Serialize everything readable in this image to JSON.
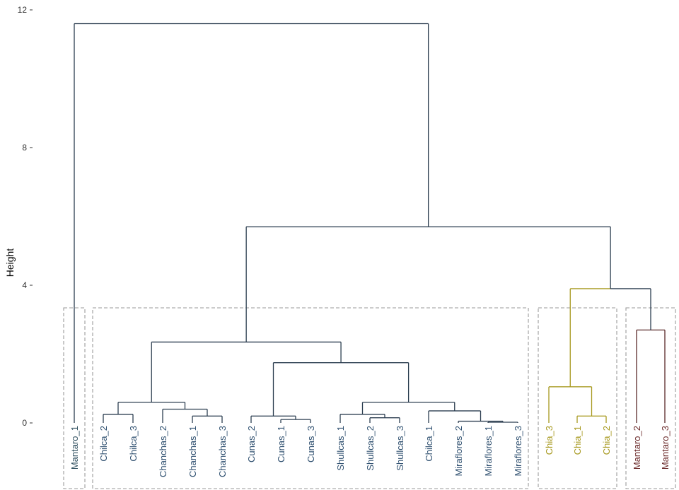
{
  "chart_data": {
    "type": "dendrogram",
    "title": "",
    "xlabel": "",
    "ylabel": "Height",
    "ylim": [
      -2.9,
      12.2
    ],
    "yticks": [
      0,
      4,
      8,
      12
    ],
    "ytick_labels": [
      "0",
      "4",
      "8",
      "12"
    ],
    "grid": false,
    "leaves": [
      {
        "label": "Mantaro_1",
        "cluster": 1
      },
      {
        "label": "Chilca_2",
        "cluster": 2
      },
      {
        "label": "Chilca_3",
        "cluster": 2
      },
      {
        "label": "Chanchas_2",
        "cluster": 2
      },
      {
        "label": "Chanchas_1",
        "cluster": 2
      },
      {
        "label": "Chanchas_3",
        "cluster": 2
      },
      {
        "label": "Cunas_2",
        "cluster": 2
      },
      {
        "label": "Cunas_1",
        "cluster": 2
      },
      {
        "label": "Cunas_3",
        "cluster": 2
      },
      {
        "label": "Shullcas_1",
        "cluster": 2
      },
      {
        "label": "Shullcas_2",
        "cluster": 2
      },
      {
        "label": "Shullcas_3",
        "cluster": 2
      },
      {
        "label": "Chilca_1",
        "cluster": 2
      },
      {
        "label": "Miraflores_2",
        "cluster": 2
      },
      {
        "label": "Miraflores_1",
        "cluster": 2
      },
      {
        "label": "Miraflores_3",
        "cluster": 2
      },
      {
        "label": "Chia_3",
        "cluster": 3
      },
      {
        "label": "Chia_1",
        "cluster": 3
      },
      {
        "label": "Chia_2",
        "cluster": 3
      },
      {
        "label": "Mantaro_2",
        "cluster": 4
      },
      {
        "label": "Mantaro_3",
        "cluster": 4
      }
    ],
    "merges": [
      {
        "height": 11.6,
        "children": [
          "Mantaro_1",
          "rest"
        ]
      },
      {
        "height": 5.7,
        "children": [
          "main_group",
          "chia_mantaro"
        ]
      },
      {
        "height": 3.9,
        "children": [
          "chia",
          "mantaro_2_3"
        ]
      },
      {
        "height": 2.7,
        "children": [
          "Mantaro_2",
          "Mantaro_3"
        ]
      },
      {
        "height": 1.05,
        "children": [
          "Chia_3",
          "chia_1_2"
        ]
      },
      {
        "height": 0.2,
        "children": [
          "Chia_1",
          "Chia_2"
        ]
      },
      {
        "height": 2.35,
        "children": [
          "chilca_chanchas",
          "cunas_shullcas_miraflores"
        ]
      },
      {
        "height": 0.6,
        "children": [
          "chilca_2_3",
          "chanchas"
        ]
      },
      {
        "height": 0.25,
        "children": [
          "Chilca_2",
          "Chilca_3"
        ]
      },
      {
        "height": 0.4,
        "children": [
          "Chanchas_2",
          "chanchas_1_3"
        ]
      },
      {
        "height": 0.2,
        "children": [
          "Chanchas_1",
          "Chanchas_3"
        ]
      },
      {
        "height": 1.75,
        "children": [
          "cunas",
          "shullcas_miraflores"
        ]
      },
      {
        "height": 0.2,
        "children": [
          "Cunas_2",
          "cunas_1_3"
        ]
      },
      {
        "height": 0.1,
        "children": [
          "Cunas_1",
          "Cunas_3"
        ]
      },
      {
        "height": 0.6,
        "children": [
          "shullcas",
          "chilca1_miraflores"
        ]
      },
      {
        "height": 0.25,
        "children": [
          "Shullcas_1",
          "shullcas_2_3"
        ]
      },
      {
        "height": 0.15,
        "children": [
          "Shullcas_2",
          "Shullcas_3"
        ]
      },
      {
        "height": 0.35,
        "children": [
          "Chilca_1",
          "miraflores"
        ]
      },
      {
        "height": 0.05,
        "children": [
          "Miraflores_2",
          "miraflores_1_3"
        ]
      },
      {
        "height": 0.02,
        "children": [
          "Miraflores_1",
          "Miraflores_3"
        ]
      }
    ],
    "cluster_colors": {
      "1": "#2c3e50",
      "2": "#2c3e50",
      "3": "#a7991f",
      "4": "#5a2a2a"
    },
    "cluster_label_colors": {
      "1": "#2f4f5f",
      "2": "#2f5070",
      "3": "#a7991f",
      "4": "#6b2a2a"
    },
    "upper_branch_colors": {
      "default": "#2c3e50",
      "chia_mantaro_merge": "#a7991f",
      "mantaro_2_3_link": "#2c3e50"
    },
    "cluster_box_color": "#9a9a9a"
  }
}
